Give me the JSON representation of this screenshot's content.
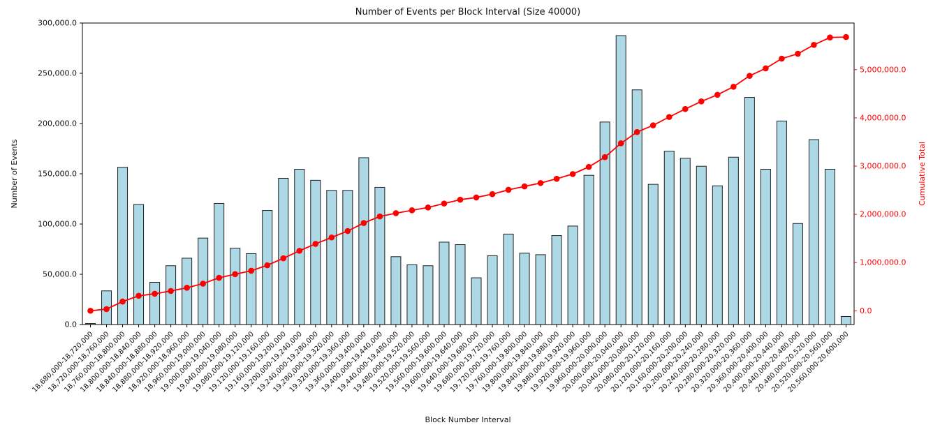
{
  "figure": {
    "title": "Number of Events per Block Interval (Size 40000)",
    "xlabel": "Block Number Interval",
    "ylabel_left": "Number of Events",
    "ylabel_right": "Cumulative Total"
  },
  "chart_data": {
    "type": "bar",
    "title": "Number of Events per Block Interval (Size 40000)",
    "xlabel": "Block Number Interval",
    "ylabel": "Number of Events",
    "ylabel_right": "Cumulative Total",
    "grid": false,
    "legend": "none",
    "x_tick_rotation": 45,
    "ylim_left": [
      0,
      300000
    ],
    "ylim_right": [
      -285000,
      5967000
    ],
    "yticks_left": {
      "values": [
        0,
        50000,
        100000,
        150000,
        200000,
        250000,
        300000
      ],
      "labels": [
        "0.0",
        "50,000.0",
        "100,000.0",
        "150,000.0",
        "200,000.0",
        "250,000.0",
        "300,000.0"
      ]
    },
    "yticks_right": {
      "values": [
        0,
        1000000,
        2000000,
        3000000,
        4000000,
        5000000
      ],
      "labels": [
        "0.0",
        "1,000,000.0",
        "2,000,000.0",
        "3,000,000.0",
        "4,000,000.0",
        "5,000,000.0"
      ]
    },
    "categories": [
      "18,680,000-18,720,000",
      "18,720,000-18,760,000",
      "18,760,000-18,800,000",
      "18,800,000-18,840,000",
      "18,840,000-18,880,000",
      "18,880,000-18,920,000",
      "18,920,000-18,960,000",
      "18,960,000-19,000,000",
      "19,000,000-19,040,000",
      "19,040,000-19,080,000",
      "19,080,000-19,120,000",
      "19,120,000-19,160,000",
      "19,160,000-19,200,000",
      "19,200,000-19,240,000",
      "19,240,000-19,280,000",
      "19,280,000-19,320,000",
      "19,320,000-19,360,000",
      "19,360,000-19,400,000",
      "19,400,000-19,440,000",
      "19,440,000-19,480,000",
      "19,480,000-19,520,000",
      "19,520,000-19,560,000",
      "19,560,000-19,600,000",
      "19,600,000-19,640,000",
      "19,640,000-19,680,000",
      "19,680,000-19,720,000",
      "19,720,000-19,760,000",
      "19,760,000-19,800,000",
      "19,800,000-19,840,000",
      "19,840,000-19,880,000",
      "19,880,000-19,920,000",
      "19,920,000-19,960,000",
      "19,960,000-20,000,000",
      "20,000,000-20,040,000",
      "20,040,000-20,080,000",
      "20,080,000-20,120,000",
      "20,120,000-20,160,000",
      "20,160,000-20,200,000",
      "20,200,000-20,240,000",
      "20,240,000-20,280,000",
      "20,280,000-20,320,000",
      "20,320,000-20,360,000",
      "20,360,000-20,400,000",
      "20,400,000-20,440,000",
      "20,440,000-20,480,000",
      "20,480,000-20,520,000",
      "20,520,000-20,560,000",
      "20,560,000-20,600,000"
    ],
    "series": [
      {
        "name": "Number of Events",
        "type": "bar",
        "axis": "left",
        "color": "#ADD8E6",
        "edge_color": "#1f1f1f",
        "values": [
          1000,
          33500,
          156500,
          119500,
          42000,
          58500,
          66000,
          86000,
          120500,
          76000,
          70500,
          113500,
          145500,
          154500,
          143500,
          133500,
          133500,
          166000,
          136500,
          67500,
          59500,
          58500,
          82000,
          79500,
          46500,
          68500,
          90000,
          71000,
          69500,
          88500,
          98000,
          148500,
          201500,
          287500,
          233500,
          139500,
          172500,
          165500,
          157500,
          138000,
          166500,
          226000,
          154500,
          202500,
          100500,
          184000,
          154500,
          8000
        ]
      },
      {
        "name": "Cumulative Total",
        "type": "line",
        "axis": "right",
        "color": "#FF0000",
        "marker": "circle",
        "values": [
          1000,
          34500,
          191000,
          310500,
          352500,
          411000,
          477000,
          563000,
          683500,
          759500,
          830000,
          943500,
          1089000,
          1243500,
          1387000,
          1520500,
          1654000,
          1820000,
          1956500,
          2024000,
          2083500,
          2142000,
          2224000,
          2303500,
          2350000,
          2418500,
          2508500,
          2579500,
          2649000,
          2737500,
          2835500,
          2984000,
          3185500,
          3473000,
          3706500,
          3846000,
          4018500,
          4184000,
          4341500,
          4479500,
          4646000,
          4872000,
          5026500,
          5229000,
          5329500,
          5513500,
          5668000,
          5676000
        ]
      }
    ],
    "colors": {
      "bar_fill": "#ADD8E6",
      "bar_edge": "#1f1f1f",
      "line": "#FF0000",
      "right_axis_text": "#FF0000",
      "axis_text": "#111111",
      "spine": "#000000"
    }
  }
}
